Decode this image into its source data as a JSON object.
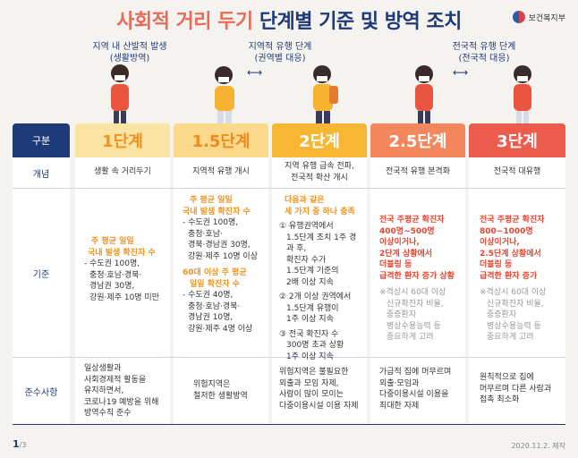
{
  "title_part1": "사회적 거리 두기",
  "title_part2": "단계별 기준 및 방역 조치",
  "logo_text": "보건복지부",
  "phases": [
    {
      "line1": "지역 내 산발적 발생",
      "line2": "(생활방역)"
    },
    {
      "line1": "지역적 유행 단계",
      "line2": "(권역별 대응)"
    },
    {
      "line1": "전국적 유행 단계",
      "line2": "(전국적 대응)"
    }
  ],
  "row_labels": {
    "head": "구분",
    "concept": "개념",
    "criteria": "기준",
    "compliance": "준수사항"
  },
  "stages": [
    {
      "name": "1단계",
      "color": "#fbe3a4",
      "text_color": "#f0921e",
      "concept": "생활 속 거리두기"
    },
    {
      "name": "1.5단계",
      "color": "#fbd98a",
      "text_color": "#f08a1e",
      "concept": "지역적 유행 개시"
    },
    {
      "name": "2단계",
      "color": "#f8b733",
      "text_color": "#ffffff",
      "concept_l1": "지역 유행 급속 전파,",
      "concept_l2": "전국적 확산 개시"
    },
    {
      "name": "2.5단계",
      "color": "#f4875d",
      "text_color": "#ffffff",
      "concept": "전국적 유행 본격화"
    },
    {
      "name": "3단계",
      "color": "#ec5b4b",
      "text_color": "#ffffff",
      "concept": "전국적 대유행"
    }
  ],
  "criteria": {
    "s1": {
      "h1": "주 평균 일일",
      "h2": "국내 발생 확진자 수",
      "l1": "- 수도권 100명,",
      "l2": "충청·호남·경북·",
      "l3": "경남권 30명,",
      "l4": "강원·제주 10명 미만"
    },
    "s15": {
      "a1": "주 평균 일일",
      "a2": "국내 발생 확진자 수",
      "b1": "- 수도권 100명,",
      "b2": "충청·호남·",
      "b3": "경북·경남권 30명,",
      "b4": "강원·제주 10명 이상",
      "c1": "60대 이상 주 평균",
      "c2": "일일 확진자 수",
      "d1": "- 수도권 40명,",
      "d2": "충청·호남·경북·",
      "d3": "경남권 10명,",
      "d4": "강원·제주 4명 이상"
    },
    "s2": {
      "h1": "다음과 같은",
      "h2": "세 가지 중 하나 충족",
      "a1": "① 유행권역에서",
      "a2": "1.5단계 조치 1주 경과 후,",
      "a3": "확진자 수가",
      "a4": "1.5단계 기준의",
      "a5": "2배 이상 지속",
      "b1": "② 2개 이상 권역에서",
      "b2": "1.5단계 유행이",
      "b3": "1주 이상 지속",
      "c1": "③ 전국 확진자 수",
      "c2": "300명 초과 상황",
      "c3": "1주 이상 지속"
    },
    "s25": {
      "h1": "전국 주평균 확진자",
      "h2": "400명~500명",
      "h3": "이상이거나,",
      "h4": "2단계 상황에서",
      "h5": "더블링 등",
      "h6": "급격한 환자 증가 상황",
      "g1": "※격상시 60대 이상",
      "g2": "신규확진자 비율,",
      "g3": "중증환자",
      "g4": "병상수용능력 등",
      "g5": "종요하게 고려"
    },
    "s3": {
      "h1": "전국 주평균 확진자",
      "h2": "800~1000명",
      "h3": "이상이거나,",
      "h4": "2.5단계 상황에서",
      "h5": "더블링 등",
      "h6": "급격한 환자 증가",
      "g1": "※격상시 60대 이상",
      "g2": "신규확진자 비율,",
      "g3": "중증환자",
      "g4": "병상수용능력 등",
      "g5": "중요하게 고려"
    }
  },
  "compliance": {
    "s1": [
      "일상생활과",
      "사회경제적 활동을",
      "유지하면서,",
      "코로나19 예방을 위해",
      "방역수칙 준수"
    ],
    "s15": [
      "위험지역은",
      "철저한 생활방역"
    ],
    "s2": [
      "위험지역은 불필요한",
      "외출과 모임 자제,",
      "사람이 많이 모이는",
      "다중이용시설 이용 자제"
    ],
    "s25": [
      "가급적 집에 머무르며",
      "외출·모임과",
      "다중이용시설 이용을",
      "최대한 자제"
    ],
    "s3": [
      "원칙적으로 집에",
      "머무르며 다른 사람과",
      "접촉 최소화"
    ]
  },
  "footer": {
    "page": "1",
    "total": "/3",
    "date": "2020.11.2. 제작"
  }
}
